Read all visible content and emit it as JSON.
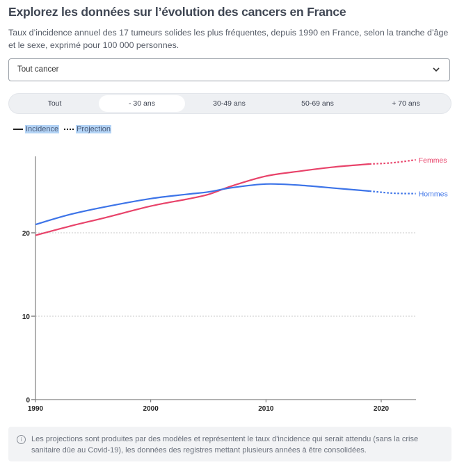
{
  "header": {
    "title": "Explorez les données sur l’évolution des cancers en France",
    "subtitle": "Taux d’incidence annuel des 17 tumeurs solides les plus fréquentes, depuis 1990 en France, selon la tranche d’âge et le sexe, exprimé pour 100 000 personnes."
  },
  "select": {
    "value": "Tout cancer",
    "icon": "chevron-down-icon"
  },
  "tabs": [
    {
      "label": "Tout",
      "active": false
    },
    {
      "label": "- 30 ans",
      "active": true
    },
    {
      "label": "30-49 ans",
      "active": false
    },
    {
      "label": "50-69 ans",
      "active": false
    },
    {
      "label": "+ 70 ans",
      "active": false
    }
  ],
  "legend": {
    "solid": "Incidence",
    "dotted": "Projection"
  },
  "note": {
    "icon": "info-icon",
    "text": "Les projections sont produites par des modèles et représentent le taux d'incidence qui serait attendu (sans la crise sanitaire dûe au Covid-19), les données des registres mettant plusieurs années à être consolidées."
  },
  "colors": {
    "femmes": "#e8436a",
    "hommes": "#3d74e8"
  },
  "chart_data": {
    "type": "line",
    "title": "",
    "xlabel": "",
    "ylabel": "",
    "xlim": [
      1990,
      2023
    ],
    "ylim": [
      0,
      29
    ],
    "x_ticks": [
      "1990",
      "2000",
      "2010",
      "2020"
    ],
    "y_ticks": [
      "0",
      "10",
      "20"
    ],
    "grid": "horizontal dotted",
    "projection_start": 2019,
    "series": [
      {
        "name": "Femmes",
        "color": "#e8436a",
        "x": [
          1990,
          1993,
          1996,
          2000,
          2003,
          2005,
          2007,
          2010,
          2013,
          2016,
          2019,
          2021,
          2023
        ],
        "values": [
          19.7,
          20.8,
          21.8,
          23.2,
          24.0,
          24.6,
          25.6,
          26.8,
          27.4,
          27.9,
          28.25,
          28.4,
          28.75
        ]
      },
      {
        "name": "Hommes",
        "color": "#3d74e8",
        "x": [
          1990,
          1993,
          1996,
          2000,
          2003,
          2005,
          2007,
          2010,
          2013,
          2016,
          2019,
          2021,
          2023
        ],
        "values": [
          21.0,
          22.2,
          23.1,
          24.1,
          24.6,
          24.9,
          25.4,
          25.85,
          25.7,
          25.35,
          25.0,
          24.75,
          24.7
        ]
      }
    ]
  }
}
